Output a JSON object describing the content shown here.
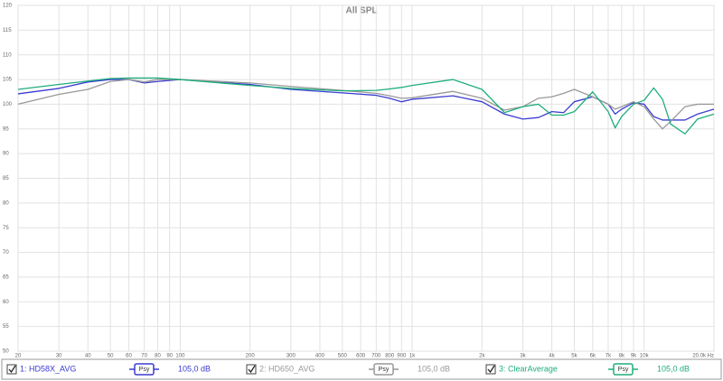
{
  "chart_data": {
    "type": "line",
    "title": "All SPL",
    "x": [
      20,
      30,
      40,
      50,
      60,
      70,
      80,
      100,
      200,
      300,
      500,
      700,
      800,
      900,
      1000,
      1500,
      2000,
      2500,
      3000,
      3500,
      4000,
      4500,
      5000,
      6000,
      7000,
      7500,
      8000,
      9000,
      10000,
      11000,
      12000,
      13000,
      15000,
      17000,
      20000
    ],
    "xlim": [
      20,
      20000
    ],
    "log_x": true,
    "ylim": [
      50,
      120
    ],
    "grid": true,
    "yticks": [
      50,
      55,
      60,
      65,
      70,
      75,
      80,
      85,
      90,
      95,
      100,
      105,
      110,
      115,
      120
    ],
    "xticks": [
      20,
      30,
      40,
      50,
      60,
      70,
      80,
      90,
      100,
      200,
      300,
      400,
      500,
      600,
      700,
      800,
      900,
      {
        "value": 1000,
        "label": "1k"
      },
      {
        "value": 2000,
        "label": "2k"
      },
      {
        "value": 3000,
        "label": "3k"
      },
      {
        "value": 4000,
        "label": "4k"
      },
      {
        "value": 5000,
        "label": "5k"
      },
      {
        "value": 6000,
        "label": "6k"
      },
      {
        "value": 7000,
        "label": "7k"
      },
      {
        "value": 8000,
        "label": "8k"
      },
      {
        "value": 9000,
        "label": "9k"
      },
      {
        "value": 10000,
        "label": "10k"
      },
      {
        "value": 20000,
        "label": "20.0k Hz"
      }
    ],
    "series": [
      {
        "name": "1: HD58X_AVG",
        "color": "#3b3bd1",
        "smoothing": "Psy",
        "offset_label": "105,0 dB",
        "values": [
          102.1,
          103.2,
          104.5,
          105,
          105,
          104.3,
          104.6,
          105,
          104,
          103,
          102.3,
          101.8,
          101.2,
          100.5,
          101,
          101.7,
          100.5,
          98,
          97,
          97.3,
          98.5,
          98.3,
          100.5,
          101.5,
          100,
          98,
          99,
          100.3,
          100,
          97.5,
          96.8,
          96.8,
          96.8,
          98,
          99
        ]
      },
      {
        "name": "2: HD650_AVG",
        "color": "#999999",
        "smoothing": "Psy",
        "offset_label": "105,0 dB",
        "values": [
          100,
          102,
          103,
          104.6,
          105,
          104.5,
          105,
          105,
          104.3,
          103.6,
          102.8,
          102.2,
          101.7,
          101.2,
          101.3,
          102.6,
          101.2,
          98.8,
          99.5,
          101.2,
          101.5,
          102.2,
          103,
          101.5,
          100,
          99,
          99.5,
          100.5,
          99.5,
          97,
          95,
          96.5,
          99.5,
          100,
          100
        ]
      },
      {
        "name": "3: ClearAverage",
        "color": "#1fae7a",
        "smoothing": "Psy",
        "offset_label": "105,0 dB",
        "values": [
          103,
          104,
          104.7,
          105.2,
          105.3,
          105.3,
          105.3,
          105,
          103.8,
          103.2,
          102.7,
          102.8,
          103.1,
          103.4,
          103.8,
          105,
          103,
          98.3,
          99.5,
          100,
          97.8,
          97.8,
          98.5,
          102.5,
          98.5,
          95.2,
          97.5,
          100,
          100.8,
          103.3,
          101,
          96,
          94,
          97,
          98
        ]
      }
    ]
  }
}
